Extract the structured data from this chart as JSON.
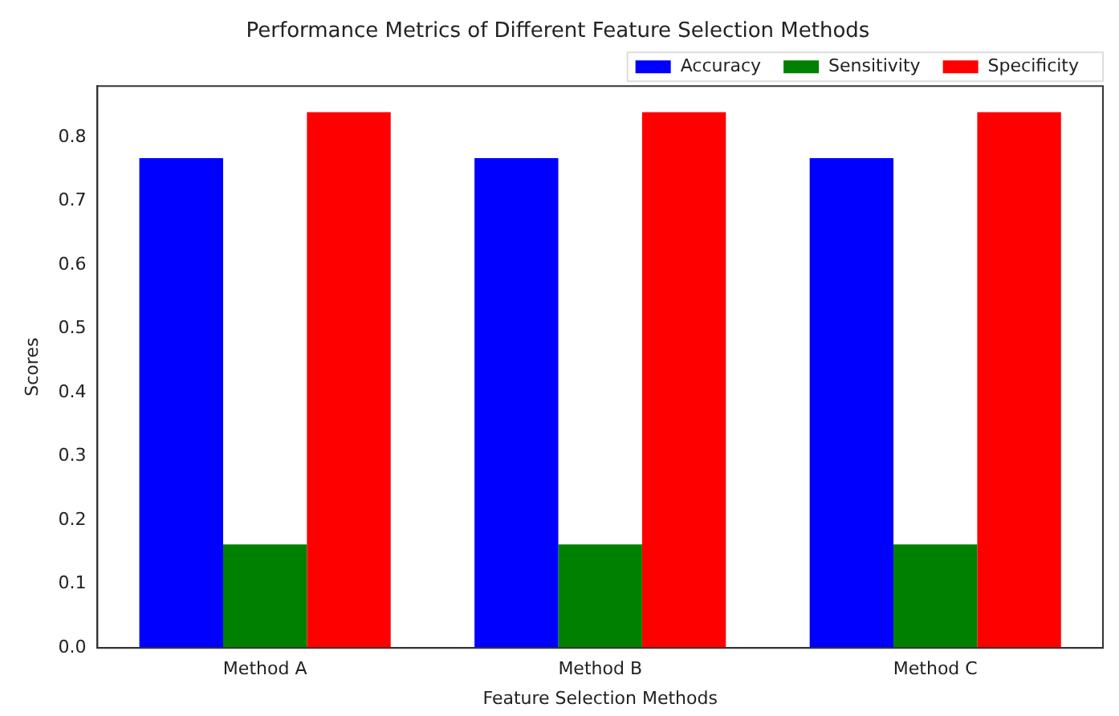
{
  "chart_data": {
    "type": "bar",
    "title": "Performance Metrics of Different Feature Selection Methods",
    "xlabel": "Feature Selection Methods",
    "ylabel": "Scores",
    "categories": [
      "Method A",
      "Method B",
      "Method C"
    ],
    "series": [
      {
        "name": "Accuracy",
        "color": "#0000ff",
        "values": [
          0.767,
          0.767,
          0.767
        ]
      },
      {
        "name": "Sensitivity",
        "color": "#008000",
        "values": [
          0.162,
          0.162,
          0.162
        ]
      },
      {
        "name": "Specificity",
        "color": "#ff0000",
        "values": [
          0.839,
          0.839,
          0.839
        ]
      }
    ],
    "ylim": [
      0,
      0.88
    ],
    "yticks": [
      {
        "value": 0,
        "label": "0.0"
      },
      0.1,
      0.2,
      0.3,
      0.4,
      0.5,
      0.6,
      0.7,
      0.8
    ],
    "grid": false,
    "legend": "top right"
  }
}
